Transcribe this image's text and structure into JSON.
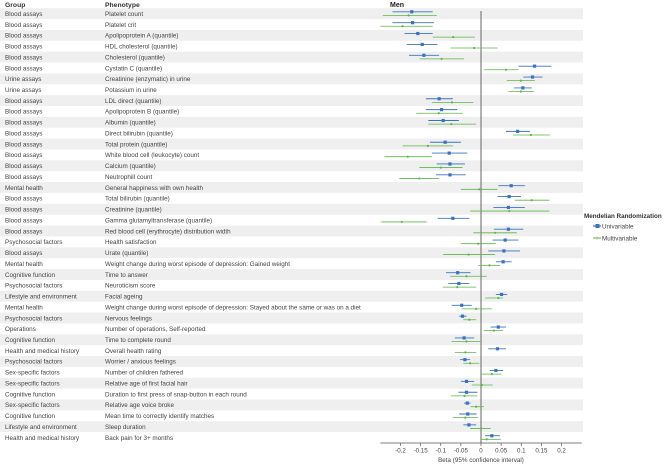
{
  "chart_data": {
    "type": "forest",
    "title": "Men",
    "columns": {
      "group": "Group",
      "phenotype": "Phenotype"
    },
    "xlabel": "Beta (95% confidence interval)",
    "xlim": [
      -0.25,
      0.25
    ],
    "xticks": [
      -0.2,
      -0.15,
      -0.1,
      -0.05,
      0,
      0.05,
      0.1,
      0.15,
      0.2
    ],
    "xtick_labels": [
      "-0.2",
      "-0.15",
      "-0.1",
      "-0.05",
      "0",
      "0.05",
      "0.1",
      "0.15",
      "0.2"
    ],
    "legend": {
      "title": "Mendelian Randomization",
      "placement": "right",
      "entries": [
        "Univariable",
        "Multivariable"
      ]
    },
    "colors": {
      "univariable": "#3b73c2",
      "multivariable": "#5fb548",
      "stripe": "#efefef",
      "zero_line": "#555555"
    },
    "rows": [
      {
        "group": "Blood assays",
        "phenotype": "Platelet count",
        "uni": [
          -0.172,
          -0.22,
          -0.12
        ],
        "multi": [
          -0.18,
          -0.244,
          -0.11
        ]
      },
      {
        "group": "Blood assays",
        "phenotype": "Platelet crit",
        "uni": [
          -0.17,
          -0.22,
          -0.117
        ],
        "multi": [
          -0.195,
          -0.25,
          -0.12
        ]
      },
      {
        "group": "Blood assays",
        "phenotype": "Apolipoprotein A (quantile)",
        "uni": [
          -0.157,
          -0.19,
          -0.12
        ],
        "multi": [
          -0.069,
          -0.12,
          -0.015
        ]
      },
      {
        "group": "Blood assays",
        "phenotype": "HDL cholesterol (quantile)",
        "uni": [
          -0.146,
          -0.185,
          -0.108
        ],
        "multi": [
          -0.017,
          -0.075,
          0.041
        ]
      },
      {
        "group": "Blood assays",
        "phenotype": "Cholesterol (quantile)",
        "uni": [
          -0.142,
          -0.179,
          -0.104
        ],
        "multi": [
          -0.098,
          -0.153,
          -0.042
        ]
      },
      {
        "group": "Blood assays",
        "phenotype": "Cystatin C (quantile)",
        "uni": [
          0.133,
          0.093,
          0.175
        ],
        "multi": [
          0.062,
          0.008,
          0.093
        ]
      },
      {
        "group": "Urine assays",
        "phenotype": "Creatinine (enzymatic) in urine",
        "uni": [
          0.128,
          0.105,
          0.153
        ],
        "multi": [
          0.099,
          0.064,
          0.134
        ]
      },
      {
        "group": "Urine assays",
        "phenotype": "Potassium in urine",
        "uni": [
          0.104,
          0.082,
          0.126
        ],
        "multi": [
          0.099,
          0.068,
          0.132
        ]
      },
      {
        "group": "Blood assays",
        "phenotype": "LDL direct (quantile)",
        "uni": [
          -0.104,
          -0.137,
          -0.07
        ],
        "multi": [
          -0.072,
          -0.122,
          -0.019
        ]
      },
      {
        "group": "Blood assays",
        "phenotype": "Apolipoprotein B (quantile)",
        "uni": [
          -0.098,
          -0.137,
          -0.059
        ],
        "multi": [
          -0.105,
          -0.161,
          -0.045
        ]
      },
      {
        "group": "Blood assays",
        "phenotype": "Albumin (quantile)",
        "uni": [
          -0.094,
          -0.131,
          -0.055
        ],
        "multi": [
          -0.074,
          -0.131,
          -0.012
        ]
      },
      {
        "group": "Blood assays",
        "phenotype": "Direct bilirubin (quantile)",
        "uni": [
          0.091,
          0.062,
          0.122
        ],
        "multi": [
          0.124,
          0.08,
          0.171
        ]
      },
      {
        "group": "Blood assays",
        "phenotype": "Total protein (quantile)",
        "uni": [
          -0.089,
          -0.127,
          -0.05
        ],
        "multi": [
          -0.132,
          -0.195,
          -0.069
        ]
      },
      {
        "group": "Blood assays",
        "phenotype": "White blood cell (leukocyte) count",
        "uni": [
          -0.079,
          -0.122,
          -0.034
        ],
        "multi": [
          -0.182,
          -0.24,
          -0.122
        ]
      },
      {
        "group": "Blood assays",
        "phenotype": "Calcium (quantile)",
        "uni": [
          -0.077,
          -0.11,
          -0.04
        ],
        "multi": [
          -0.1,
          -0.153,
          -0.046
        ]
      },
      {
        "group": "Blood assays",
        "phenotype": "Neutrophill count",
        "uni": [
          -0.077,
          -0.112,
          -0.038
        ],
        "multi": [
          -0.153,
          -0.203,
          -0.104
        ]
      },
      {
        "group": "Mental health",
        "phenotype": "General happiness with own health",
        "uni": [
          0.075,
          0.043,
          0.109
        ],
        "multi": [
          -0.004,
          -0.05,
          0.041
        ]
      },
      {
        "group": "Blood assays",
        "phenotype": "Total bilirubin (quantile)",
        "uni": [
          0.07,
          0.041,
          0.099
        ],
        "multi": [
          0.126,
          0.084,
          0.17
        ]
      },
      {
        "group": "Blood assays",
        "phenotype": "Creatinine (quantile)",
        "uni": [
          0.068,
          0.031,
          0.109
        ],
        "multi": [
          0.07,
          -0.027,
          0.17
        ]
      },
      {
        "group": "Blood assays",
        "phenotype": "Gamma glutamyltransferase (quantile)",
        "uni": [
          -0.07,
          -0.108,
          -0.029
        ],
        "multi": [
          -0.197,
          -0.248,
          -0.135
        ]
      },
      {
        "group": "Blood assays",
        "phenotype": "Red blood cell (erythrocyte) distribution width",
        "uni": [
          0.068,
          0.032,
          0.105
        ],
        "multi": [
          0.035,
          -0.019,
          0.089
        ]
      },
      {
        "group": "Psychosocial factors",
        "phenotype": "Health satisfaction",
        "uni": [
          0.06,
          0.029,
          0.093
        ],
        "multi": [
          -0.007,
          -0.05,
          0.037
        ]
      },
      {
        "group": "Blood assays",
        "phenotype": "Urate (quantile)",
        "uni": [
          0.057,
          0.018,
          0.097
        ],
        "multi": [
          -0.031,
          -0.094,
          0.035
        ]
      },
      {
        "group": "Mental health",
        "phenotype": "Weight change during worst episode of depression: Gained weight",
        "uni": [
          0.055,
          0.037,
          0.076
        ],
        "multi": [
          0.021,
          -0.007,
          0.047
        ]
      },
      {
        "group": "Cognitive function",
        "phenotype": "Time to answer",
        "uni": [
          -0.058,
          -0.087,
          -0.026
        ],
        "multi": [
          -0.036,
          -0.077,
          0.014
        ]
      },
      {
        "group": "Psychosocial factors",
        "phenotype": "Neuroticism score",
        "uni": [
          -0.055,
          -0.081,
          -0.029
        ],
        "multi": [
          -0.059,
          -0.095,
          -0.012
        ]
      },
      {
        "group": "Lifestyle and environment",
        "phenotype": "Facial ageing",
        "uni": [
          0.051,
          0.037,
          0.065
        ],
        "multi": [
          0.043,
          0.01,
          0.055
        ]
      },
      {
        "group": "Mental health",
        "phenotype": "Weight change during worst episode of depression: Stayed about the same or was on a diet",
        "uni": [
          -0.048,
          -0.073,
          -0.023
        ],
        "multi": [
          -0.012,
          -0.048,
          0.027
        ]
      },
      {
        "group": "Psychosocial factors",
        "phenotype": "Nervous feelings",
        "uni": [
          -0.046,
          -0.054,
          -0.036
        ],
        "multi": [
          -0.029,
          -0.044,
          -0.012
        ]
      },
      {
        "group": "Operations",
        "phenotype": "Number of operations, Self-reported",
        "uni": [
          0.043,
          0.024,
          0.062
        ],
        "multi": [
          0.032,
          0.007,
          0.055
        ]
      },
      {
        "group": "Cognitive function",
        "phenotype": "Time to complete round",
        "uni": [
          -0.042,
          -0.065,
          -0.017
        ],
        "multi": [
          -0.036,
          -0.073,
          -0.002
        ]
      },
      {
        "group": "Health and medical history",
        "phenotype": "Overall health rating",
        "uni": [
          0.041,
          0.018,
          0.062
        ],
        "multi": [
          -0.039,
          -0.065,
          -0.012
        ]
      },
      {
        "group": "Psychosocial factors",
        "phenotype": "Worrier / anxious feelings",
        "uni": [
          -0.04,
          -0.052,
          -0.027
        ],
        "multi": [
          -0.027,
          -0.044,
          -0.004
        ]
      },
      {
        "group": "Sex-specific factors",
        "phenotype": "Number of children fathered",
        "uni": [
          0.037,
          0.022,
          0.055
        ],
        "multi": [
          0.027,
          0.0,
          0.051
        ]
      },
      {
        "group": "Sex-specific factors",
        "phenotype": "Relative age of first facial hair",
        "uni": [
          -0.036,
          -0.05,
          -0.017
        ],
        "multi": [
          0.002,
          -0.023,
          0.029
        ]
      },
      {
        "group": "Cognitive function",
        "phenotype": "Duration to first press of snap-button in each round",
        "uni": [
          -0.036,
          -0.056,
          -0.009
        ],
        "multi": [
          -0.041,
          -0.075,
          -0.009
        ]
      },
      {
        "group": "Sex-specific factors",
        "phenotype": "Relative age voice broke",
        "uni": [
          -0.034,
          -0.042,
          -0.026
        ],
        "multi": [
          -0.012,
          -0.026,
          0.007
        ]
      },
      {
        "group": "Cognitive function",
        "phenotype": "Mean time to correctly identify matches",
        "uni": [
          -0.033,
          -0.054,
          -0.011
        ],
        "multi": [
          -0.039,
          -0.07,
          -0.007
        ]
      },
      {
        "group": "Lifestyle and environment",
        "phenotype": "Sleep duration",
        "uni": [
          -0.03,
          -0.044,
          -0.012
        ],
        "multi": [
          0.0,
          -0.027,
          0.024
        ]
      },
      {
        "group": "Health and medical history",
        "phenotype": "Back pain for 3+ months",
        "uni": [
          0.027,
          0.01,
          0.047
        ],
        "multi": [
          0.014,
          -0.002,
          0.049
        ]
      }
    ]
  }
}
